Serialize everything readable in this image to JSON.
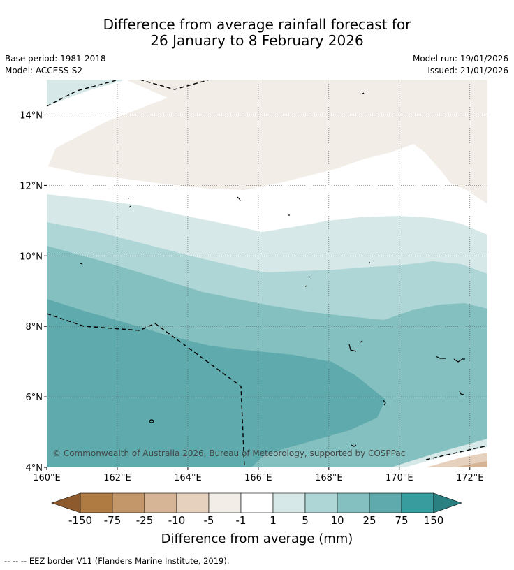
{
  "header": {
    "title_line1": "Difference from average rainfall forecast for",
    "title_line2": "26 January to 8 February 2026",
    "base_period": "Base period: 1981-2018",
    "model": "Model: ACCESS-S2",
    "model_run": "Model run: 19/01/2026",
    "issued": "Issued: 21/01/2026"
  },
  "map": {
    "x_ticks": [
      "160°E",
      "162°E",
      "164°E",
      "166°E",
      "168°E",
      "170°E",
      "172°E"
    ],
    "y_ticks": [
      "14°N",
      "12°N",
      "10°N",
      "8°N",
      "6°N",
      "4°N"
    ],
    "lon_range": [
      160,
      172.5
    ],
    "lat_range": [
      4,
      15
    ],
    "copyright": "© Commonwealth of Australia 2026, Bureau of Meteorology, supported by COSPPac"
  },
  "colorbar": {
    "labels": [
      "-150",
      "-75",
      "-25",
      "-10",
      "-5",
      "-1",
      "1",
      "5",
      "10",
      "25",
      "75",
      "150"
    ],
    "colors": [
      "#8c5a2c",
      "#b07a43",
      "#c4976a",
      "#d6b596",
      "#e6d1be",
      "#f3ede8",
      "#ffffff",
      "#d6e9e8",
      "#aed6d6",
      "#85c0c0",
      "#5eaaac",
      "#389c9e",
      "#2a7f80"
    ],
    "title": "Difference from average (mm)"
  },
  "footer": {
    "legend": "--  --  -- EEZ border V11 (Flanders Marine Institute, 2019)."
  }
}
